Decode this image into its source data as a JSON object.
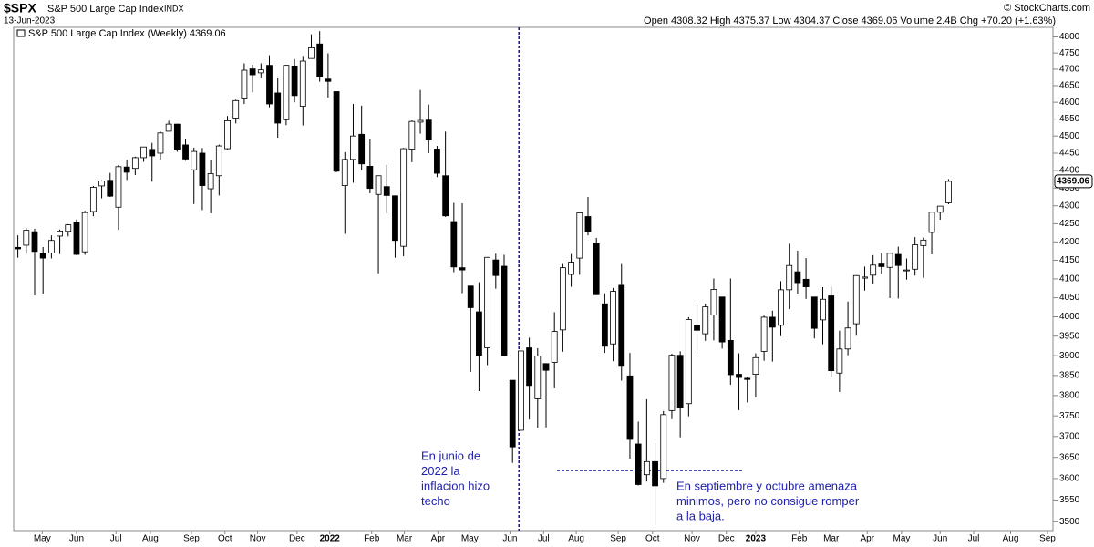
{
  "header": {
    "symbol": "$SPX",
    "name": "S&P 500 Large Cap Index",
    "exchange": "INDX",
    "date": "13-Jun-2023",
    "quote": "Open 4308.32  High 4375.37  Low 4304.37  Close 4369.06  Volume 2.4B  Chg +70.20 (+1.63%)",
    "credit": "© StockCharts.com"
  },
  "chart_data": {
    "type": "candlestick",
    "legend": "S&P 500 Large Cap Index (Weekly) 4369.06",
    "log_scale": true,
    "grid": false,
    "ylim": [
      3480,
      4830
    ],
    "yticks": [
      3500,
      3550,
      3600,
      3650,
      3700,
      3750,
      3800,
      3850,
      3900,
      3950,
      4000,
      4050,
      4100,
      4150,
      4200,
      4250,
      4300,
      4350,
      4400,
      4450,
      4500,
      4550,
      4600,
      4650,
      4700,
      4750,
      4800
    ],
    "xlim": [
      -0.5,
      124
    ],
    "xticks": [
      {
        "value": 2.9,
        "label": "May"
      },
      {
        "value": 7.0,
        "label": "Jun"
      },
      {
        "value": 11.7,
        "label": "Jul"
      },
      {
        "value": 15.8,
        "label": "Aug"
      },
      {
        "value": 20.7,
        "label": "Sep"
      },
      {
        "value": 24.7,
        "label": "Oct"
      },
      {
        "value": 28.6,
        "label": "Nov"
      },
      {
        "value": 33.3,
        "label": "Dec"
      },
      {
        "value": 37.2,
        "label": "2022"
      },
      {
        "value": 42.2,
        "label": "Feb"
      },
      {
        "value": 46.1,
        "label": "Mar"
      },
      {
        "value": 50.1,
        "label": "Apr"
      },
      {
        "value": 53.9,
        "label": "May"
      },
      {
        "value": 58.7,
        "label": "Jun"
      },
      {
        "value": 62.7,
        "label": "Jul"
      },
      {
        "value": 66.6,
        "label": "Aug"
      },
      {
        "value": 71.6,
        "label": "Sep"
      },
      {
        "value": 75.7,
        "label": "Oct"
      },
      {
        "value": 80.4,
        "label": "Nov"
      },
      {
        "value": 84.5,
        "label": "Dec"
      },
      {
        "value": 88.0,
        "label": "2023"
      },
      {
        "value": 93.2,
        "label": "Feb"
      },
      {
        "value": 97.0,
        "label": "Mar"
      },
      {
        "value": 101.3,
        "label": "Apr"
      },
      {
        "value": 105.4,
        "label": "May"
      },
      {
        "value": 110.0,
        "label": "Jun"
      },
      {
        "value": 114.0,
        "label": "Jul"
      },
      {
        "value": 118.4,
        "label": "Aug"
      },
      {
        "value": 122.8,
        "label": "Sep"
      }
    ],
    "up_color": "#ffffff",
    "down_color": "#000000",
    "open": [
      4185,
      4191,
      4228,
      4169,
      4170,
      4216,
      4229,
      4255,
      4173,
      4284,
      4356,
      4372,
      4296,
      4410,
      4406,
      4437,
      4461,
      4450,
      4514,
      4535,
      4474,
      4402,
      4450,
      4348,
      4385,
      4463,
      4553,
      4610,
      4701,
      4689,
      4712,
      4628,
      4548,
      4710,
      4588,
      4733,
      4778,
      4670,
      4632,
      4357,
      4432,
      4505,
      4412,
      4332,
      4354,
      4328,
      4188,
      4462,
      4541,
      4547,
      4462,
      4385,
      4256,
      4130,
      4081,
      4013,
      3920,
      4151,
      4134,
      3838,
      3715,
      3920,
      3792,
      3880,
      3883,
      3966,
      4112,
      4156,
      4270,
      4195,
      4034,
      3930,
      4083,
      3849,
      3682,
      3609,
      3640,
      3600,
      3763,
      3901,
      3780,
      3978,
      3956,
      4005,
      4052,
      3939,
      3853,
      3843,
      3853,
      3911,
      3999,
      3978,
      4071,
      4119,
      4099,
      4052,
      3992,
      4055,
      3856,
      3917,
      3982,
      4102,
      4110,
      4140,
      4131,
      4166,
      4124,
      4126,
      4190,
      4226,
      4282,
      4308.32
    ],
    "high": [
      4218,
      4238,
      4236,
      4186,
      4218,
      4234,
      4249,
      4262,
      4286,
      4356,
      4372,
      4393,
      4416,
      4430,
      4440,
      4468,
      4480,
      4513,
      4545,
      4536,
      4492,
      4466,
      4465,
      4429,
      4475,
      4559,
      4608,
      4718,
      4714,
      4718,
      4743,
      4672,
      4713,
      4731,
      4741,
      4808,
      4818,
      4749,
      4632,
      4453,
      4595,
      4590,
      4490,
      4385,
      4416,
      4329,
      4465,
      4546,
      4637,
      4593,
      4471,
      4513,
      4308,
      4307,
      4082,
      4091,
      4159,
      4168,
      4165,
      3838,
      3913,
      3946,
      3919,
      3880,
      4012,
      4140,
      4167,
      4280,
      4325,
      4211,
      4062,
      4076,
      4140,
      3907,
      3736,
      3791,
      3685,
      3762,
      3905,
      3911,
      3999,
      4029,
      4034,
      4101,
      4052,
      4101,
      3906,
      3846,
      3906,
      4003,
      4016,
      4094,
      4195,
      4176,
      4156,
      4052,
      4078,
      4079,
      3964,
      4040,
      4110,
      4133,
      4164,
      4169,
      4170,
      4187,
      4155,
      4213,
      4212,
      4283,
      4299,
      4375.37
    ],
    "low": [
      4157,
      4168,
      4056,
      4061,
      4155,
      4167,
      4215,
      4164,
      4165,
      4271,
      4321,
      4325,
      4233,
      4373,
      4387,
      4425,
      4368,
      4431,
      4514,
      4454,
      4428,
      4305,
      4288,
      4279,
      4329,
      4460,
      4537,
      4595,
      4630,
      4672,
      4585,
      4495,
      4532,
      4600,
      4531,
      4733,
      4662,
      4614,
      4395,
      4222,
      4365,
      4401,
      4335,
      4115,
      4279,
      4157,
      4161,
      4424,
      4507,
      4450,
      4381,
      4269,
      4118,
      4062,
      3859,
      3811,
      3876,
      4074,
      3900,
      3637,
      3715,
      3741,
      3721,
      3722,
      3818,
      3910,
      4079,
      4111,
      4218,
      4057,
      3907,
      3886,
      3837,
      3647,
      3584,
      3593,
      3491,
      3590,
      3742,
      3698,
      3749,
      3906,
      3938,
      3939,
      3918,
      3827,
      3764,
      3783,
      3795,
      3887,
      3885,
      3950,
      4020,
      4061,
      4047,
      3944,
      3929,
      3847,
      3809,
      3901,
      3951,
      4069,
      4086,
      4114,
      4049,
      4048,
      4098,
      4109,
      4103,
      4166,
      4261,
      4304.37
    ],
    "close": [
      4181,
      4232,
      4174,
      4156,
      4204,
      4230,
      4247,
      4166,
      4281,
      4352,
      4370,
      4327,
      4411,
      4395,
      4437,
      4468,
      4442,
      4509,
      4535,
      4459,
      4433,
      4455,
      4357,
      4391,
      4471,
      4545,
      4605,
      4697,
      4683,
      4698,
      4595,
      4538,
      4712,
      4620,
      4725,
      4766,
      4677,
      4663,
      4398,
      4432,
      4500,
      4419,
      4349,
      4385,
      4329,
      4204,
      4463,
      4543,
      4546,
      4488,
      4392,
      4272,
      4132,
      4124,
      4024,
      3901,
      4158,
      4109,
      3901,
      3675,
      3912,
      3825,
      3899,
      3863,
      3962,
      4130,
      4145,
      4280,
      4228,
      4058,
      3924,
      4067,
      3873,
      3693,
      3586,
      3640,
      3583,
      3753,
      3901,
      3771,
      3993,
      3965,
      4026,
      4072,
      3935,
      3852,
      3845,
      3840,
      3895,
      3999,
      3973,
      4071,
      4136,
      4090,
      4079,
      3970,
      4046,
      3862,
      3917,
      3971,
      4109,
      4105,
      4137,
      4133,
      4169,
      4136,
      4124,
      4192,
      4205,
      4282,
      4299,
      4369.06
    ],
    "annotations": [
      {
        "lines": [
          "En junio de",
          "2022 la",
          "inflacion hizo",
          "techo"
        ]
      },
      {
        "lines": [
          "En septiembre y octubre amenaza",
          "minimos, pero no consigue romper",
          "a la baja."
        ]
      }
    ]
  }
}
